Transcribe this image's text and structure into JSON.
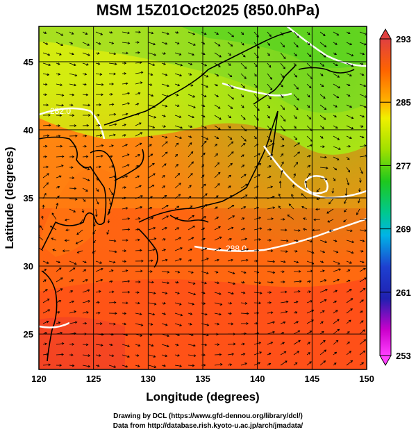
{
  "title": "MSM 15Z01Oct2025 (850.0hPa)",
  "x_axis": {
    "label": "Longitude (degrees)",
    "ticks": [
      "120",
      "125",
      "130",
      "135",
      "140",
      "145",
      "150"
    ],
    "range": [
      120,
      150
    ]
  },
  "y_axis": {
    "label": "Latitude  (degrees)",
    "ticks": [
      "25",
      "30",
      "35",
      "40",
      "45"
    ],
    "range": [
      22.4,
      47.6
    ]
  },
  "colorbar": {
    "ticks": [
      "293",
      "285",
      "277",
      "269",
      "261",
      "253"
    ],
    "range": [
      253,
      293
    ],
    "colors": [
      "#ff40ff",
      "#cc00cc",
      "#2020b0",
      "#1e40d0",
      "#00b4e6",
      "#00c890",
      "#1ec81e",
      "#a0e000",
      "#f0f000",
      "#ffb400",
      "#ff6400",
      "#f02020",
      "#e04040"
    ]
  },
  "contour_labels": [
    "282.0",
    "288.0"
  ],
  "credits": {
    "line1": "Drawing by DCL (https://www.gfd-dennou.org/library/dcl/)",
    "line2": "Data from http://database.rish.kyoto-u.ac.jp/arch/jmadata/"
  }
}
